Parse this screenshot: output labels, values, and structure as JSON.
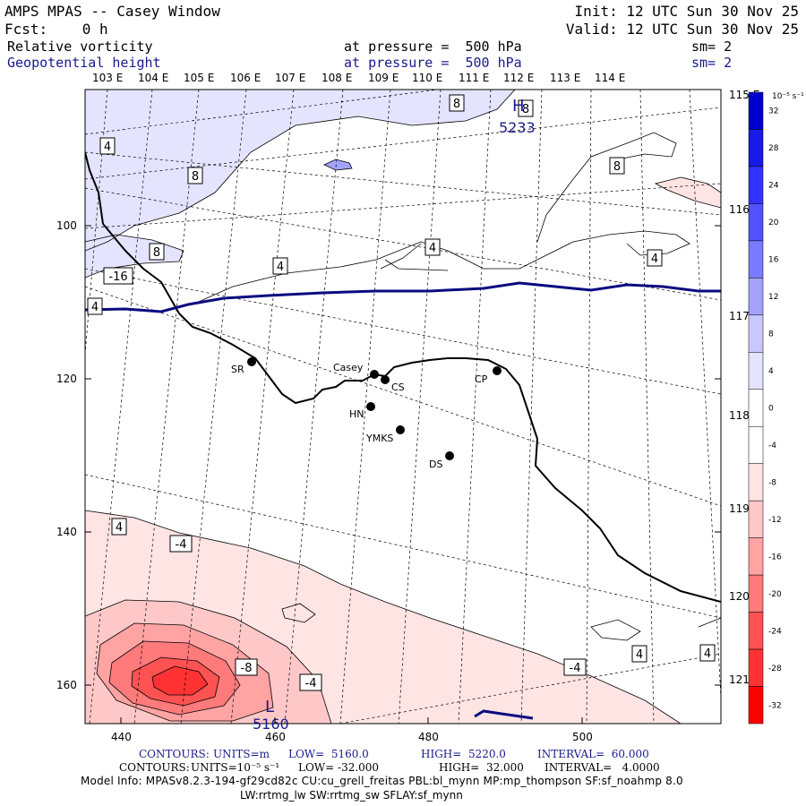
{
  "header": {
    "title": "AMPS MPAS -- Casey Window",
    "init": "Init: 12 UTC Sun 30 Nov 25",
    "fcst": "Fcst:    0 h",
    "valid": "Valid: 12 UTC Sun 30 Nov 25",
    "field1": "Relative vorticity",
    "field1_level": "at pressure =  500 hPa",
    "field1_sm": "sm= 2",
    "field2": "Geopotential height",
    "field2_level": "at pressure =  500 hPa",
    "field2_sm": "sm= 2"
  },
  "map": {
    "lon_top_labels": [
      "103 E",
      "104 E",
      "105 E",
      "106 E",
      "107 E",
      "108 E",
      "109 E",
      "110 E",
      "111 E",
      "112 E",
      "113 E",
      "114 E"
    ],
    "lon_right_labels": [
      "115 E",
      "116 E",
      "117 E",
      "118 E",
      "119 E",
      "120 E",
      "121 E"
    ],
    "y_axis_labels": [
      "100",
      "120",
      "140",
      "160"
    ],
    "x_axis_labels": [
      "440",
      "460",
      "480",
      "500"
    ],
    "stations": [
      {
        "name": "SR"
      },
      {
        "name": "Casey"
      },
      {
        "name": "CS"
      },
      {
        "name": "HN"
      },
      {
        "name": "YMKS"
      },
      {
        "name": "DS"
      },
      {
        "name": "CP"
      }
    ],
    "contour_labels": [
      "8",
      "8",
      "8",
      "8",
      "8",
      "4",
      "4",
      "4",
      "4",
      "4",
      "4",
      "4",
      "4",
      "-4",
      "-4",
      "-4",
      "-8",
      "-16"
    ],
    "height_labels": [
      "5233",
      "5160"
    ],
    "low_marker": "L",
    "high_marker": "H"
  },
  "colorbar": {
    "unit": "10⁻⁵ s⁻¹",
    "ticks": [
      "32",
      "28",
      "24",
      "20",
      "16",
      "12",
      "8",
      "4",
      "0",
      "-4",
      "-8",
      "-12",
      "-16",
      "-20",
      "-24",
      "-28",
      "-32"
    ],
    "colors": [
      "#0000cc",
      "#1a1ae6",
      "#3333ff",
      "#5252ff",
      "#7a7aff",
      "#a3a3ff",
      "#c8c8ff",
      "#e4e4ff",
      "#ffffff",
      "#ffffff",
      "#ffe4e4",
      "#ffc8c8",
      "#ffa3a3",
      "#ff7a7a",
      "#ff5252",
      "#ff3333",
      "#ff0000"
    ]
  },
  "footer": {
    "contours1_label": "CONTOURS:",
    "contours1_units": "UNITS=m",
    "contours1_low": "LOW=  5160.0",
    "contours1_high": "HIGH=  5220.0",
    "contours1_interval": "INTERVAL=  60.000",
    "contours2_label": "CONTOURS:",
    "contours2_units": "UNITS=10⁻⁵ s⁻¹",
    "contours2_low": "LOW= -32.000",
    "contours2_high": "HIGH=  32.000",
    "contours2_interval": "INTERVAL=   4.0000",
    "model_info": "Model Info: MPASv8.2.3-194-gf29cd82c CU:cu_grell_freitas PBL:bl_mynn MP:mp_thompson SF:sf_noahmp 8.0",
    "model_info2": "LW:rrtmg_lw SW:rrtmg_sw SFLAY:sf_mynn"
  }
}
